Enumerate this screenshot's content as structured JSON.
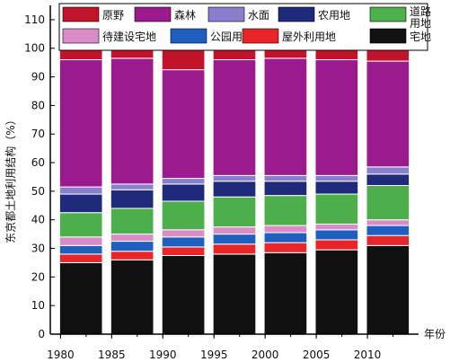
{
  "chart_data": {
    "type": "bar",
    "stacked": true,
    "title": "",
    "xlabel": "年份",
    "ylabel": "东京都土地利用结构（%）",
    "ylim": [
      0,
      115
    ],
    "yticks": [
      0,
      10,
      20,
      30,
      40,
      50,
      60,
      70,
      80,
      90,
      100,
      110
    ],
    "xlim": [
      1979,
      2015
    ],
    "xticks": [
      1980,
      1985,
      1990,
      1995,
      2000,
      2005,
      2010
    ],
    "x": [
      1982,
      1987,
      1992,
      1997,
      2002,
      2007,
      2012
    ],
    "bar_width_years": 4.2,
    "grid": false,
    "legend_position": "top",
    "series": [
      {
        "name": "宅地",
        "color": "#111111",
        "values": [
          25,
          26,
          27.5,
          28,
          28.5,
          29.5,
          31
        ]
      },
      {
        "name": "屋外利用地",
        "color": "#e8262a",
        "values": [
          3,
          3,
          3,
          3.5,
          3.5,
          3.5,
          3.5
        ]
      },
      {
        "name": "公园用地",
        "color": "#1f5fbf",
        "values": [
          3,
          3.5,
          3.5,
          3.5,
          3.5,
          3.5,
          3.5
        ]
      },
      {
        "name": "待建设宅地",
        "color": "#d98cc8",
        "values": [
          3,
          2.5,
          2.5,
          2.5,
          2.5,
          2,
          2
        ]
      },
      {
        "name": "道路用地",
        "color": "#4caf4c",
        "values": [
          8.5,
          9,
          10,
          10.5,
          10.5,
          10.5,
          12
        ]
      },
      {
        "name": "农用地",
        "color": "#1f2a7a",
        "values": [
          6.5,
          6.5,
          6,
          5.5,
          5,
          4.5,
          4
        ]
      },
      {
        "name": "水面",
        "color": "#8a7fcf",
        "values": [
          2.5,
          2,
          2,
          2,
          2,
          2,
          2.5
        ]
      },
      {
        "name": "森林",
        "color": "#9b1a8e",
        "values": [
          44.5,
          44,
          38,
          40.5,
          41,
          40.5,
          37
        ]
      },
      {
        "name": "原野",
        "color": "#c1142a",
        "values": [
          4,
          3.5,
          7,
          4,
          3.5,
          4,
          4.5
        ]
      }
    ],
    "legend_order": [
      "原野",
      "森林",
      "水面",
      "农用地",
      "道路用地",
      "待建设宅地",
      "公园用地",
      "屋外利用地",
      "宅地"
    ]
  }
}
